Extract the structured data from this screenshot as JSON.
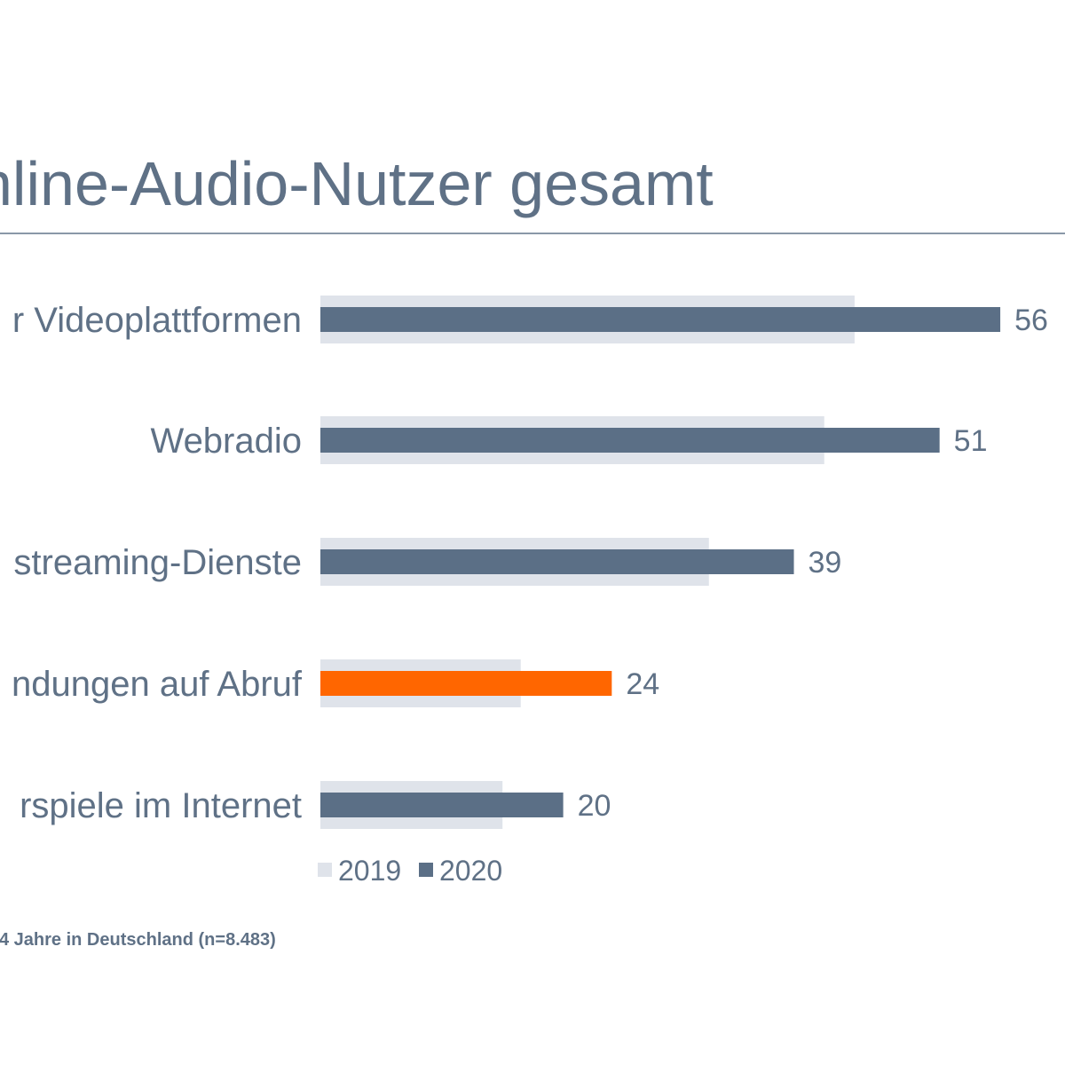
{
  "title": "nline-Audio-Nutzer gesamt",
  "footnote": "4 Jahre in Deutschland (n=8.483)",
  "colors": {
    "bar_2019": "#dfe3ea",
    "bar_2020": "#5b6f86",
    "highlight": "#ff6600",
    "text": "#5f7186"
  },
  "chart_data": {
    "type": "bar",
    "orientation": "horizontal",
    "categories": [
      "r Videoplattformen",
      "Webradio",
      "streaming-Dienste",
      "ndungen auf Abruf",
      "rspiele im Internet"
    ],
    "series": [
      {
        "name": "2019",
        "values": [
          44,
          41.5,
          32,
          16.5,
          15
        ]
      },
      {
        "name": "2020",
        "values": [
          56,
          51,
          39,
          24,
          20
        ]
      }
    ],
    "value_labels": [
      "56",
      "51",
      "39",
      "24",
      "20"
    ],
    "highlight_index": 3,
    "legend_position": "bottom",
    "grid": false
  }
}
